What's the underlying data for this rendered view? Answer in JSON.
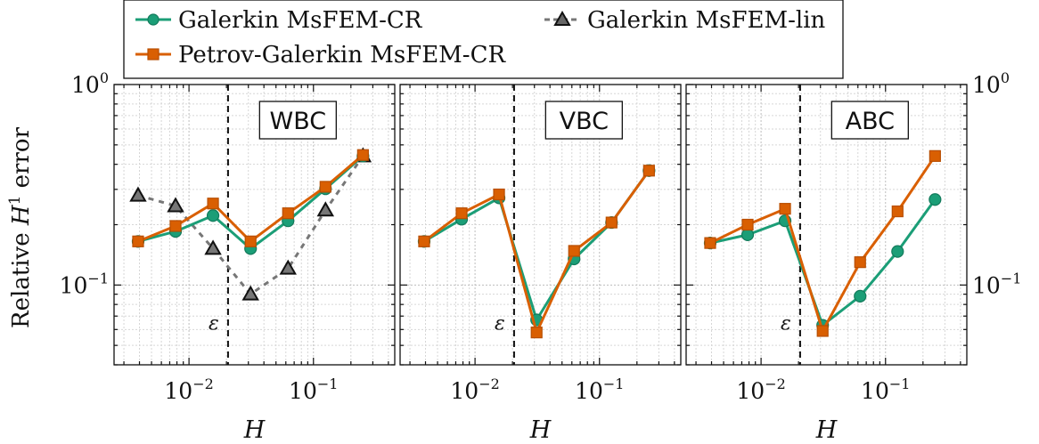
{
  "legend": {
    "entries": [
      {
        "label": "Galerkin MsFEM-CR",
        "color": "#1b9e77",
        "marker": "circle",
        "dash": "solid"
      },
      {
        "label": "Galerkin MsFEM-lin",
        "color": "#777777",
        "marker": "triangle",
        "dash": "dashed"
      },
      {
        "label": "Petrov-Galerkin MsFEM-CR",
        "color": "#d95f02",
        "marker": "square",
        "dash": "solid"
      }
    ]
  },
  "ylabel": {
    "prefix": "Relative ",
    "var": "H",
    "sup": "1",
    "suffix": " error"
  },
  "xlabel": "H",
  "epsilon_label": "ε",
  "chart_data": [
    {
      "type": "line",
      "title": "WBC",
      "x_scale": "log",
      "y_scale": "log",
      "xlim": [
        0.0025,
        0.45
      ],
      "ylim": [
        0.04,
        1.0
      ],
      "epsilon_line_x": 0.0206,
      "x_ticks": [
        "10^-2",
        "10^-1"
      ],
      "y_ticks": [
        "10^0",
        "10^-1"
      ],
      "series": [
        {
          "name": "Galerkin MsFEM-CR",
          "x": [
            0.0039,
            0.0078,
            0.0156,
            0.03125,
            0.0625,
            0.125,
            0.25
          ],
          "y": [
            0.165,
            0.185,
            0.222,
            0.152,
            0.209,
            0.302,
            0.44
          ]
        },
        {
          "name": "Petrov-Galerkin MsFEM-CR",
          "x": [
            0.0039,
            0.0078,
            0.0156,
            0.03125,
            0.0625,
            0.125,
            0.25
          ],
          "y": [
            0.165,
            0.197,
            0.255,
            0.165,
            0.228,
            0.309,
            0.445
          ]
        },
        {
          "name": "Galerkin MsFEM-lin",
          "x": [
            0.0039,
            0.0078,
            0.0156,
            0.03125,
            0.0625,
            0.125,
            0.25
          ],
          "y": [
            0.28,
            0.248,
            0.152,
            0.09,
            0.121,
            0.236,
            0.44
          ]
        }
      ]
    },
    {
      "type": "line",
      "title": "VBC",
      "x_scale": "log",
      "y_scale": "log",
      "xlim": [
        0.0025,
        0.45
      ],
      "ylim": [
        0.04,
        1.0
      ],
      "epsilon_line_x": 0.0206,
      "x_ticks": [
        "10^-2",
        "10^-1"
      ],
      "series": [
        {
          "name": "Galerkin MsFEM-CR",
          "x": [
            0.0039,
            0.0078,
            0.0156,
            0.03125,
            0.0625,
            0.125,
            0.25
          ],
          "y": [
            0.165,
            0.213,
            0.272,
            0.067,
            0.135,
            0.205,
            0.372
          ]
        },
        {
          "name": "Petrov-Galerkin MsFEM-CR",
          "x": [
            0.0039,
            0.0078,
            0.0156,
            0.03125,
            0.0625,
            0.125,
            0.25
          ],
          "y": [
            0.165,
            0.228,
            0.283,
            0.058,
            0.148,
            0.205,
            0.372
          ]
        }
      ]
    },
    {
      "type": "line",
      "title": "ABC",
      "x_scale": "log",
      "y_scale": "log",
      "xlim": [
        0.0025,
        0.45
      ],
      "ylim": [
        0.04,
        1.0
      ],
      "epsilon_line_x": 0.0206,
      "x_ticks": [
        "10^-2",
        "10^-1"
      ],
      "y_ticks": [
        "10^0",
        "10^-1"
      ],
      "series": [
        {
          "name": "Galerkin MsFEM-CR",
          "x": [
            0.0039,
            0.0078,
            0.0156,
            0.03125,
            0.0625,
            0.125,
            0.25
          ],
          "y": [
            0.162,
            0.178,
            0.209,
            0.063,
            0.088,
            0.147,
            0.267
          ]
        },
        {
          "name": "Petrov-Galerkin MsFEM-CR",
          "x": [
            0.0039,
            0.0078,
            0.0156,
            0.03125,
            0.0625,
            0.125,
            0.25
          ],
          "y": [
            0.162,
            0.2,
            0.24,
            0.059,
            0.13,
            0.233,
            0.44
          ]
        }
      ]
    }
  ]
}
